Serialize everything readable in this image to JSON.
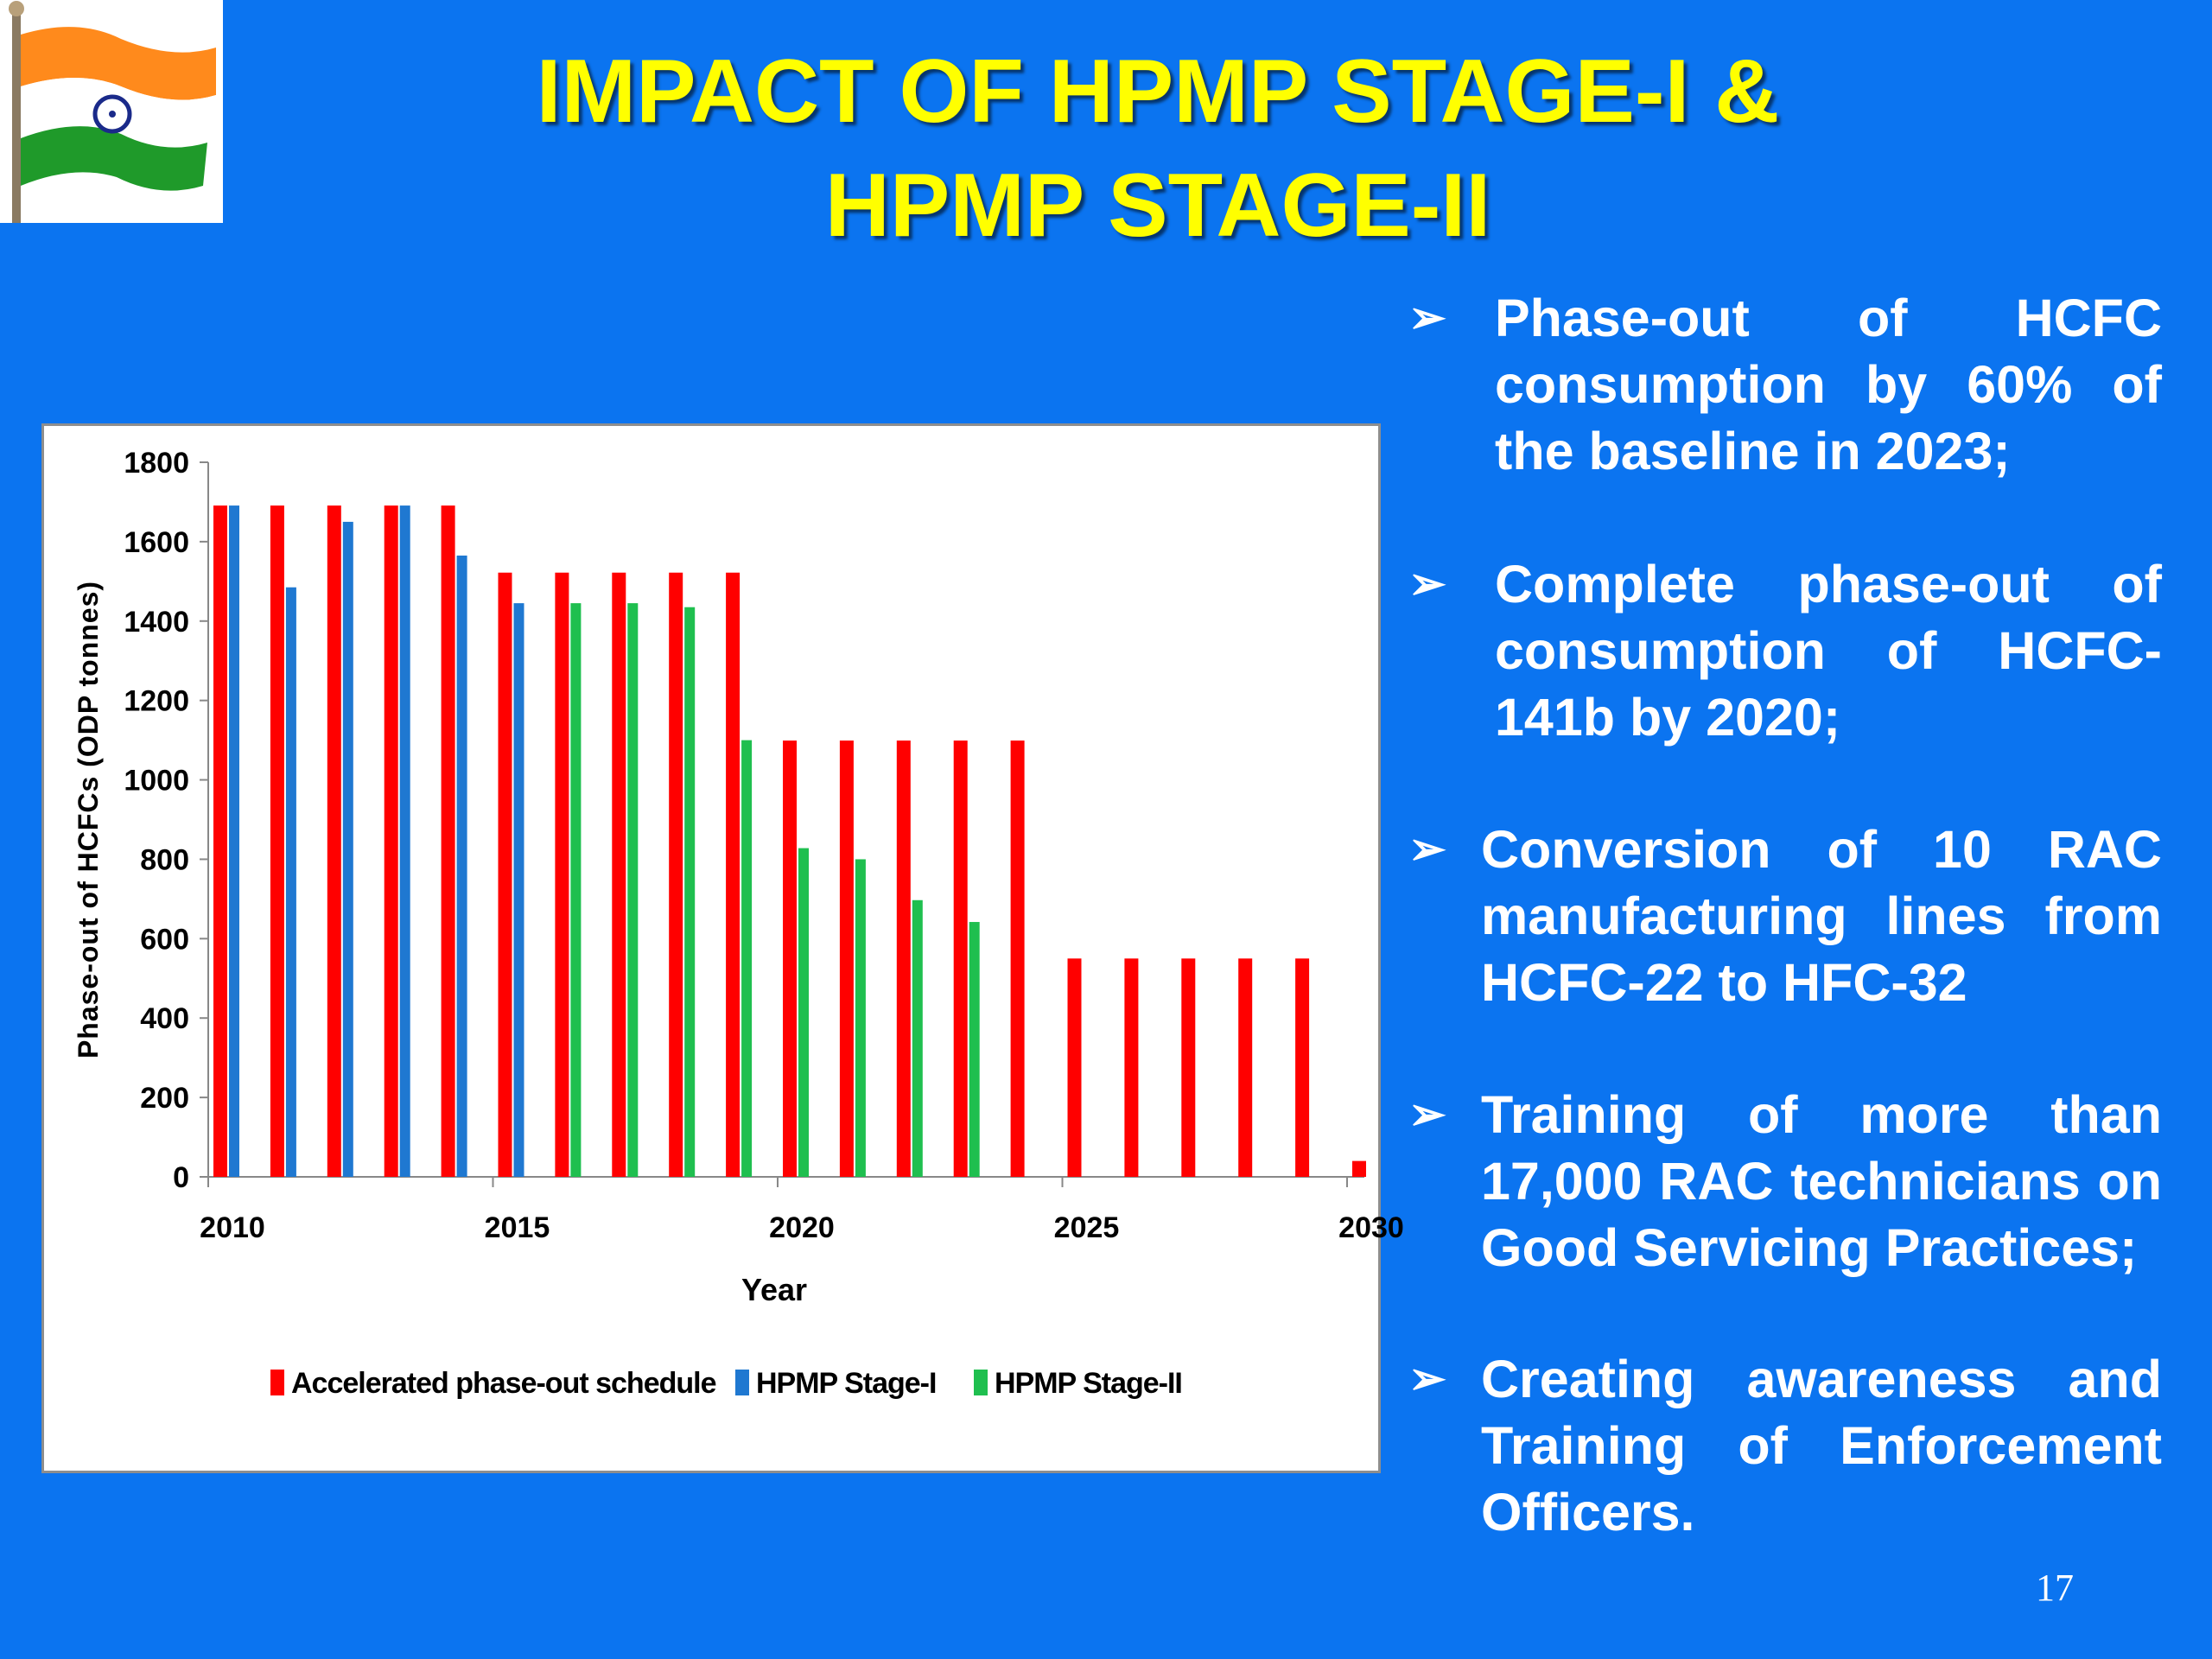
{
  "slide": {
    "title_line1": "IMPACT OF HPMP STAGE-I &",
    "title_line2": "HPMP STAGE-II",
    "page_number": "17",
    "background_color": "#0b74f0",
    "title_color": "#ffff00"
  },
  "logo": {
    "icon": "indian-flag-icon"
  },
  "bullets": [
    {
      "text": "Phase-out of HCFC consumption by 60% of the baseline in 2023;"
    },
    {
      "text": "Complete phase-out of consumption of HCFC-141b by 2020;"
    },
    {
      "text": "Conversion of 10 RAC manufacturing lines from HCFC-22 to HFC-32"
    },
    {
      "text": "Training of more than 17,000 RAC technicians on Good Servicing Practices;"
    },
    {
      "text": "Creating awareness and Training of Enforcement Officers."
    }
  ],
  "bullet_marker": "➢",
  "chart_data": {
    "type": "bar",
    "xlabel": "Year",
    "ylabel": "Phase-out of HCFCs (ODP tonnes)",
    "ylim": [
      0,
      1800
    ],
    "yticks": [
      0,
      200,
      400,
      600,
      800,
      1000,
      1200,
      1400,
      1600,
      1800
    ],
    "xlim": [
      2010,
      2030
    ],
    "xticks": [
      2010,
      2015,
      2020,
      2025,
      2030
    ],
    "grid": false,
    "legend_position": "bottom",
    "series": [
      {
        "name": "Accelerated phase-out schedule",
        "color": "#ff0000",
        "points": [
          {
            "x": 2010,
            "y": 1691
          },
          {
            "x": 2011,
            "y": 1691
          },
          {
            "x": 2012,
            "y": 1691
          },
          {
            "x": 2013,
            "y": 1691
          },
          {
            "x": 2014,
            "y": 1691
          },
          {
            "x": 2015,
            "y": 1522
          },
          {
            "x": 2016,
            "y": 1522
          },
          {
            "x": 2017,
            "y": 1522
          },
          {
            "x": 2018,
            "y": 1522
          },
          {
            "x": 2019,
            "y": 1522
          },
          {
            "x": 2020,
            "y": 1099
          },
          {
            "x": 2021,
            "y": 1099
          },
          {
            "x": 2022,
            "y": 1099
          },
          {
            "x": 2023,
            "y": 1099
          },
          {
            "x": 2024,
            "y": 1099
          },
          {
            "x": 2025,
            "y": 550
          },
          {
            "x": 2026,
            "y": 550
          },
          {
            "x": 2027,
            "y": 550
          },
          {
            "x": 2028,
            "y": 550
          },
          {
            "x": 2029,
            "y": 550
          },
          {
            "x": 2030,
            "y": 40
          }
        ]
      },
      {
        "name": "HPMP Stage-I",
        "color": "#1f78d1",
        "points": [
          {
            "x": 2010,
            "y": 1691
          },
          {
            "x": 2011,
            "y": 1485
          },
          {
            "x": 2012,
            "y": 1650
          },
          {
            "x": 2013,
            "y": 1691
          },
          {
            "x": 2014,
            "y": 1565
          },
          {
            "x": 2015,
            "y": 1445
          }
        ]
      },
      {
        "name": "HPMP Stage-II",
        "color": "#1fbf4f",
        "points": [
          {
            "x": 2016,
            "y": 1445
          },
          {
            "x": 2017,
            "y": 1445
          },
          {
            "x": 2018,
            "y": 1435
          },
          {
            "x": 2019,
            "y": 1100
          },
          {
            "x": 2020,
            "y": 828
          },
          {
            "x": 2021,
            "y": 800
          },
          {
            "x": 2022,
            "y": 697
          },
          {
            "x": 2023,
            "y": 642
          }
        ]
      }
    ]
  }
}
